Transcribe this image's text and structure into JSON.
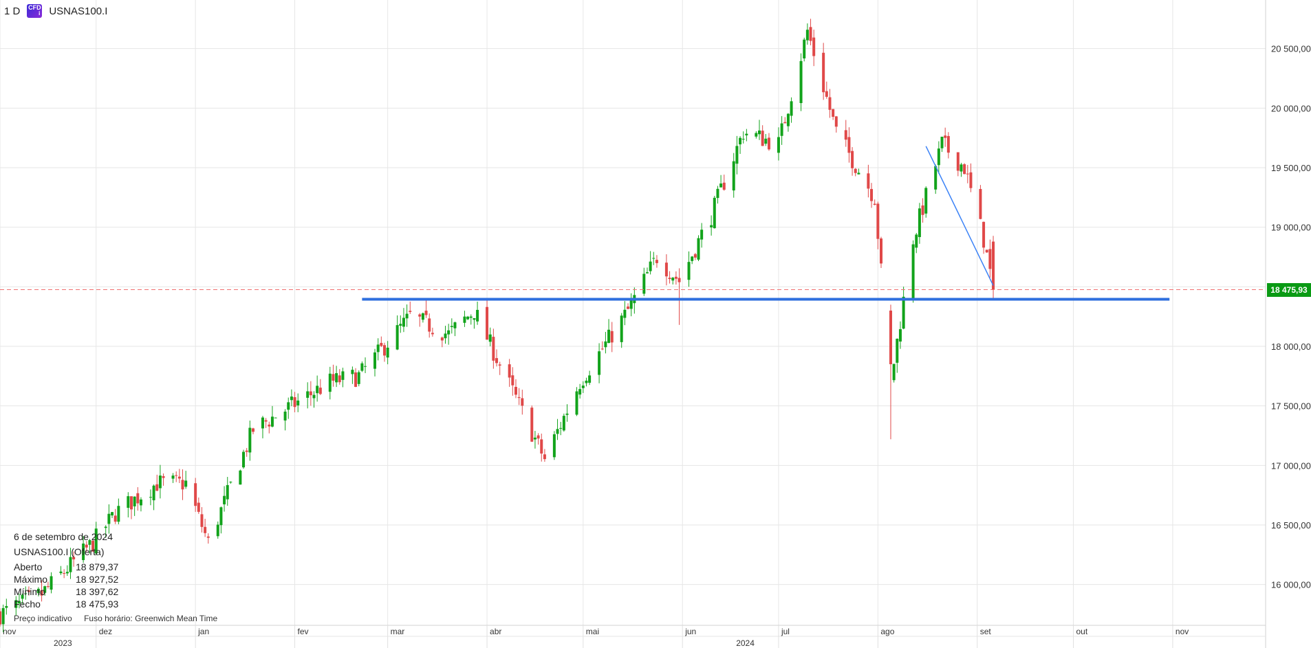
{
  "header": {
    "interval": "1 D",
    "badge": "CFD",
    "badge_sub": "i",
    "symbol": "USNAS100.I"
  },
  "info_panel": {
    "date": "6 de setembro de 2024",
    "title": "USNAS100.I (Oferta)",
    "rows": [
      {
        "label": "Aberto",
        "value": "18 879,37"
      },
      {
        "label": "Máximo",
        "value": "18 927,52"
      },
      {
        "label": "Mínimo",
        "value": "18 397,62"
      },
      {
        "label": "Fecho",
        "value": "18 475,93"
      }
    ],
    "footnote": {
      "indicative": "Preço indicativo",
      "timezone": "Fuso horário: Greenwich Mean Time"
    }
  },
  "current_price": "18 475,93",
  "colors": {
    "up": "#12a31b",
    "down": "#e04848",
    "hline": "#2f6fde",
    "trend": "#3b82f6",
    "dashed": "#ef6f6f",
    "tag": "#0a9a14"
  },
  "chart_data": {
    "type": "candlestick",
    "ylim": [
      15600,
      20850
    ],
    "y_ticks": [
      {
        "v": 16000,
        "label": "16 000,00"
      },
      {
        "v": 16500,
        "label": "16 500,00"
      },
      {
        "v": 17000,
        "label": "17 000,00"
      },
      {
        "v": 17500,
        "label": "17 500,00"
      },
      {
        "v": 18000,
        "label": "18 000,00"
      },
      {
        "v": 18500,
        "label": "18 500,00"
      },
      {
        "v": 19000,
        "label": "19 000,00"
      },
      {
        "v": 19500,
        "label": "19 500,00"
      },
      {
        "v": 20000,
        "label": "20 000,00"
      },
      {
        "v": 20500,
        "label": "20 500,00"
      }
    ],
    "x_months": [
      {
        "label": "nov",
        "date": "2023-11-01"
      },
      {
        "label": "dez",
        "date": "2023-12-01"
      },
      {
        "label": "jan",
        "date": "2024-01-01"
      },
      {
        "label": "fev",
        "date": "2024-02-01"
      },
      {
        "label": "mar",
        "date": "2024-03-01"
      },
      {
        "label": "abr",
        "date": "2024-04-01"
      },
      {
        "label": "mai",
        "date": "2024-05-01"
      },
      {
        "label": "jun",
        "date": "2024-06-01"
      },
      {
        "label": "jul",
        "date": "2024-07-01"
      },
      {
        "label": "ago",
        "date": "2024-08-01"
      },
      {
        "label": "set",
        "date": "2024-09-01"
      },
      {
        "label": "out",
        "date": "2024-10-01"
      },
      {
        "label": "nov",
        "date": "2024-11-01"
      }
    ],
    "x_years": [
      {
        "label": "2023",
        "date": "2023-11-01"
      },
      {
        "label": "2024",
        "date": "2024-06-01"
      }
    ],
    "x_end": "2024-11-30",
    "horizontal_line": {
      "value": 18395,
      "from": "2024-02-22",
      "to": "2024-10-31"
    },
    "trend_line": {
      "from_date": "2024-08-16",
      "from_value": 19680,
      "to_date": "2024-09-06",
      "to_value": 18510
    },
    "last_price": 18475.93,
    "close_waypoints": [
      [
        "2023-11-01",
        15750
      ],
      [
        "2023-11-14",
        15920
      ],
      [
        "2023-11-30",
        16350
      ],
      [
        "2023-12-07",
        16600
      ],
      [
        "2023-12-20",
        16850
      ],
      [
        "2023-12-29",
        16850
      ],
      [
        "2024-01-05",
        16350
      ],
      [
        "2024-01-19",
        17300
      ],
      [
        "2024-01-31",
        17500
      ],
      [
        "2024-02-12",
        17700
      ],
      [
        "2024-02-21",
        17750
      ],
      [
        "2024-03-08",
        18250
      ],
      [
        "2024-03-20",
        18100
      ],
      [
        "2024-03-28",
        18300
      ],
      [
        "2024-04-19",
        17050
      ],
      [
        "2024-04-30",
        17700
      ],
      [
        "2024-05-15",
        18300
      ],
      [
        "2024-05-24",
        18750
      ],
      [
        "2024-05-31",
        18550
      ],
      [
        "2024-06-10",
        19100
      ],
      [
        "2024-06-20",
        19800
      ],
      [
        "2024-07-01",
        19700
      ],
      [
        "2024-07-10",
        20650
      ],
      [
        "2024-07-19",
        19800
      ],
      [
        "2024-07-31",
        19250
      ],
      [
        "2024-08-05",
        17700
      ],
      [
        "2024-08-12",
        18900
      ],
      [
        "2024-08-21",
        19700
      ],
      [
        "2024-08-28",
        19500
      ],
      [
        "2024-09-03",
        18900
      ],
      [
        "2024-09-06",
        18475.93
      ]
    ]
  }
}
